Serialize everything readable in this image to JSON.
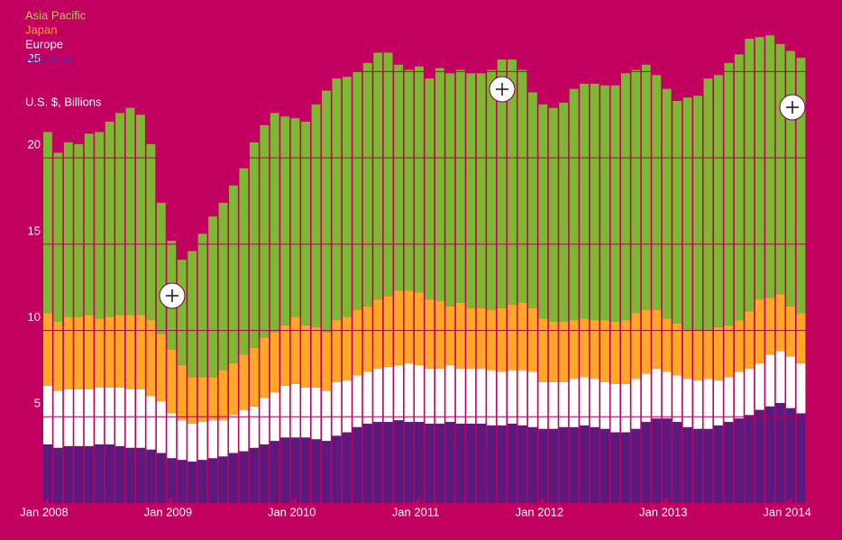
{
  "chart_data": {
    "type": "stacked_bar",
    "y_label": "U.S. $, Billions",
    "categories": [
      "Jan 2008",
      null,
      null,
      null,
      null,
      null,
      null,
      null,
      null,
      null,
      null,
      null,
      "Jan 2009",
      null,
      null,
      null,
      null,
      null,
      null,
      null,
      null,
      null,
      null,
      null,
      "Jan 2010",
      null,
      null,
      null,
      null,
      null,
      null,
      null,
      null,
      null,
      null,
      null,
      "Jan 2011",
      null,
      null,
      null,
      null,
      null,
      null,
      null,
      null,
      null,
      null,
      null,
      "Jan 2012",
      null,
      null,
      null,
      null,
      null,
      null,
      null,
      null,
      null,
      null,
      null,
      "Jan 2013",
      null,
      null,
      null,
      null,
      null,
      null,
      null,
      null,
      null,
      null,
      null,
      "Jan 2014",
      null
    ],
    "series": [
      {
        "name": "Americas",
        "color": "#5a1a7e",
        "values": [
          3.4,
          3.2,
          3.3,
          3.3,
          3.3,
          3.4,
          3.4,
          3.3,
          3.2,
          3.2,
          3.1,
          2.9,
          2.6,
          2.5,
          2.4,
          2.5,
          2.6,
          2.7,
          2.9,
          3.0,
          3.2,
          3.4,
          3.6,
          3.8,
          3.8,
          3.8,
          3.7,
          3.6,
          3.9,
          4.1,
          4.4,
          4.6,
          4.7,
          4.7,
          4.8,
          4.7,
          4.7,
          4.6,
          4.6,
          4.7,
          4.6,
          4.6,
          4.6,
          4.5,
          4.5,
          4.6,
          4.5,
          4.4,
          4.3,
          4.3,
          4.4,
          4.4,
          4.5,
          4.4,
          4.3,
          4.1,
          4.1,
          4.3,
          4.7,
          4.9,
          4.9,
          4.7,
          4.4,
          4.3,
          4.3,
          4.5,
          4.7,
          4.9,
          5.1,
          5.4,
          5.6,
          5.8,
          5.5,
          5.2
        ]
      },
      {
        "name": "Europe",
        "color": "#ffffff",
        "values": [
          3.4,
          3.3,
          3.3,
          3.3,
          3.3,
          3.3,
          3.3,
          3.4,
          3.4,
          3.4,
          3.1,
          3.0,
          2.6,
          2.3,
          2.2,
          2.2,
          2.2,
          2.1,
          2.2,
          2.4,
          2.4,
          2.7,
          2.8,
          3.0,
          3.1,
          2.9,
          3.0,
          2.9,
          3.1,
          3.0,
          3.0,
          3.0,
          3.1,
          3.2,
          3.2,
          3.4,
          3.3,
          3.2,
          3.2,
          3.3,
          3.2,
          3.2,
          3.2,
          3.2,
          3.1,
          3.1,
          3.2,
          3.2,
          2.7,
          2.7,
          2.6,
          2.8,
          2.8,
          2.8,
          2.7,
          2.8,
          2.8,
          2.9,
          2.8,
          2.9,
          2.7,
          2.7,
          2.8,
          2.8,
          2.9,
          2.6,
          2.6,
          2.7,
          2.7,
          2.7,
          3.0,
          3.0,
          3.0,
          2.9
        ]
      },
      {
        "name": "Japan",
        "color": "#ffa726",
        "values": [
          4.2,
          4.0,
          4.2,
          4.2,
          4.3,
          4.0,
          4.1,
          4.2,
          4.3,
          4.3,
          4.4,
          3.9,
          3.7,
          3.2,
          2.7,
          2.6,
          2.5,
          2.9,
          3.0,
          3.2,
          3.4,
          3.5,
          3.5,
          3.5,
          3.9,
          3.6,
          3.5,
          3.4,
          3.6,
          3.7,
          3.8,
          3.8,
          4.0,
          4.1,
          4.3,
          4.2,
          4.2,
          4.0,
          3.9,
          3.4,
          3.8,
          3.5,
          3.5,
          3.5,
          3.7,
          3.8,
          3.9,
          3.7,
          3.7,
          3.5,
          3.5,
          3.4,
          3.4,
          3.4,
          3.6,
          3.6,
          3.7,
          3.8,
          3.7,
          3.4,
          3.1,
          3.0,
          2.8,
          2.9,
          2.8,
          3.1,
          3.0,
          3.0,
          3.3,
          3.7,
          3.3,
          3.3,
          2.9,
          2.9
        ]
      },
      {
        "name": "Asia Pacific",
        "color": "#7cb832",
        "values": [
          10.5,
          9.8,
          10.1,
          10.0,
          10.5,
          10.8,
          11.3,
          11.7,
          12.0,
          11.6,
          10.2,
          7.6,
          6.3,
          6.1,
          7.3,
          8.3,
          9.3,
          9.7,
          10.3,
          10.8,
          11.9,
          12.3,
          12.7,
          12.1,
          11.5,
          11.8,
          12.9,
          14.0,
          14.0,
          13.9,
          13.8,
          14.1,
          14.3,
          14.1,
          13.1,
          12.8,
          13.1,
          12.8,
          13.5,
          13.5,
          13.5,
          13.6,
          13.6,
          13.9,
          14.4,
          14.2,
          13.5,
          12.5,
          12.4,
          12.4,
          12.7,
          13.4,
          13.6,
          13.7,
          13.6,
          13.7,
          14.3,
          14.1,
          14.2,
          13.6,
          13.3,
          12.9,
          13.5,
          13.6,
          14.6,
          14.6,
          15.2,
          15.4,
          15.8,
          15.2,
          15.2,
          14.5,
          14.8,
          14.8
        ]
      }
    ],
    "ylim": [
      0,
      28
    ],
    "yticks": [
      5,
      10,
      15,
      20,
      25
    ],
    "grid": true
  }
}
